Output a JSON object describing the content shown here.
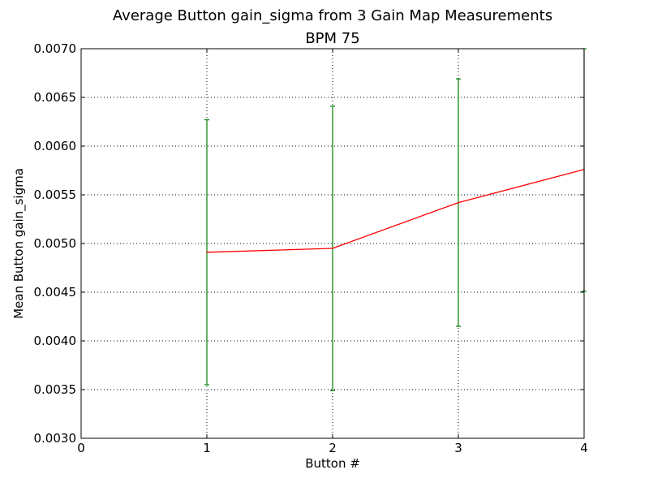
{
  "chart_data": {
    "type": "line",
    "title": "Average Button gain_sigma from 3 Gain Map Measurements",
    "subtitle": "BPM 75",
    "xlabel": "Button #",
    "ylabel": "Mean Button gain_sigma",
    "xlim": [
      0,
      4
    ],
    "ylim": [
      0.003,
      0.007
    ],
    "x_ticks": [
      "0",
      "1",
      "2",
      "3",
      "4"
    ],
    "y_ticks": [
      "0.0030",
      "0.0035",
      "0.0040",
      "0.0045",
      "0.0050",
      "0.0055",
      "0.0060",
      "0.0065",
      "0.0070"
    ],
    "grid": true,
    "line_color": "#ff0000",
    "errorbar_color": "#008000",
    "series": [
      {
        "x": [
          1,
          2,
          3,
          4
        ],
        "values": [
          0.00491,
          0.00495,
          0.00542,
          0.00576
        ],
        "error_low": [
          0.00355,
          0.00349,
          0.00415,
          0.00451
        ],
        "error_high": [
          0.00627,
          0.00641,
          0.00669,
          0.007
        ]
      }
    ]
  }
}
